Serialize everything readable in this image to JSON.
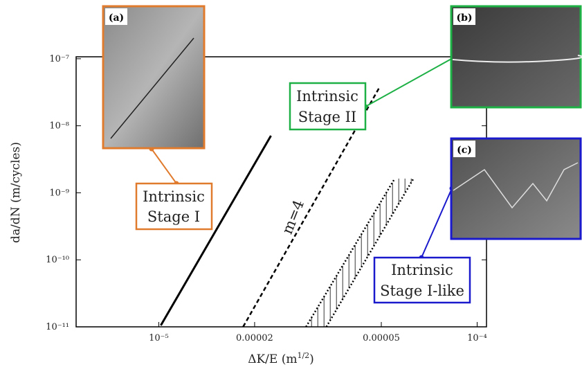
{
  "chart_data": {
    "type": "line",
    "xlabel_parts": [
      "ΔK/E (m",
      "1/2",
      ")"
    ],
    "ylabel": "da/dN (m/cycles)",
    "log_x": true,
    "log_y": true,
    "xlim": [
      5.5e-06,
      0.000107
    ],
    "ylim": [
      1e-11,
      1.07e-07
    ],
    "xticks": [
      {
        "value": 1e-05,
        "label": "10⁻⁵"
      },
      2e-05,
      5e-05,
      {
        "value": 0.0001,
        "label": "10⁻⁴"
      }
    ],
    "yticks": [
      {
        "value": 1e-11,
        "label": "10⁻¹¹"
      },
      {
        "value": 1e-10,
        "label": "10⁻¹⁰"
      },
      {
        "value": 1e-09,
        "label": "10⁻⁹"
      },
      {
        "value": 1e-08,
        "label": "10⁻⁸"
      },
      {
        "value": 1e-07,
        "label": "10⁻⁷"
      }
    ],
    "series": [
      {
        "color": "#000000",
        "style": "solid",
        "x": [
          1.015e-05,
          2.25e-05
        ],
        "values": [
          1.05e-11,
          7.1e-09
        ]
      },
      {
        "color": "#000000",
        "style": "dashed",
        "x": [
          1.84e-05,
          4.91e-05
        ],
        "values": [
          1e-11,
          3.6e-08
        ]
      },
      {
        "color": "#000000",
        "style": "dotted",
        "x": [
          2.9e-05,
          5.51e-05
        ],
        "values": [
          1e-11,
          1.63e-09
        ]
      },
      {
        "color": "#000000",
        "style": "dotted",
        "x": [
          3.36e-05,
          6.31e-05
        ],
        "values": [
          1e-11,
          1.63e-09
        ]
      }
    ],
    "hatch_between": [
      2,
      3
    ],
    "slope_label": "m=4",
    "annotations": [
      "Intrinsic",
      "Stage I",
      "Intrinsic",
      "Stage II",
      "Intrinsic",
      "Stage I-like"
    ],
    "inset_labels": [
      "(a)",
      "(b)",
      "(c)"
    ]
  }
}
